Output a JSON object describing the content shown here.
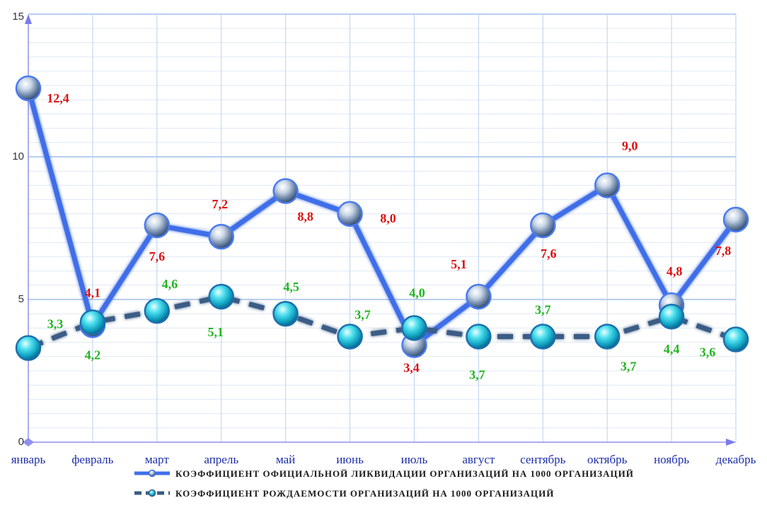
{
  "chart_data": {
    "type": "line",
    "categories": [
      "январь",
      "февраль",
      "март",
      "апрель",
      "май",
      "июнь",
      "июль",
      "август",
      "сентябрь",
      "октябрь",
      "ноябрь",
      "декабрь"
    ],
    "ylim": [
      0,
      15
    ],
    "yticks": [
      "0",
      "5",
      "10",
      "15"
    ],
    "grid": true,
    "legend_position": "bottom",
    "series": [
      {
        "name": "КОЭФФИЦИЕНТ  ОФИЦИАЛЬНОЙ  ЛИКВИДАЦИИ  ОРГАНИЗАЦИЙ  НА 1000 ОРГАНИЗАЦИЙ",
        "values": [
          12.4,
          4.1,
          7.6,
          7.2,
          8.8,
          8.0,
          3.4,
          5.1,
          7.6,
          9.0,
          4.8,
          7.8
        ],
        "labels": [
          "12,4",
          "4,1",
          "7,6",
          "7,2",
          "8,8",
          "8,0",
          "3,4",
          "5,1",
          "7,6",
          "9,0",
          "4,8",
          "7,8"
        ],
        "color": "#3f6ee8",
        "label_color": "#dd1111",
        "style": "solid"
      },
      {
        "name": "КОЭФФИЦИЕНТ  РОЖДАЕМОСТИ  ОРГАНИЗАЦИЙ  НА  1000  ОРГАНИЗАЦИЙ",
        "values": [
          3.3,
          4.2,
          4.6,
          5.1,
          4.5,
          3.7,
          4.0,
          3.7,
          3.7,
          3.7,
          4.4,
          3.6
        ],
        "labels": [
          "3,3",
          "4,2",
          "4,6",
          "5,1",
          "4,5",
          "3,7",
          "4,0",
          "3,7",
          "3,7",
          "3,7",
          "4,4",
          "3,6"
        ],
        "color": "#3a5b85",
        "label_color": "#22b422",
        "style": "dashed"
      }
    ]
  }
}
